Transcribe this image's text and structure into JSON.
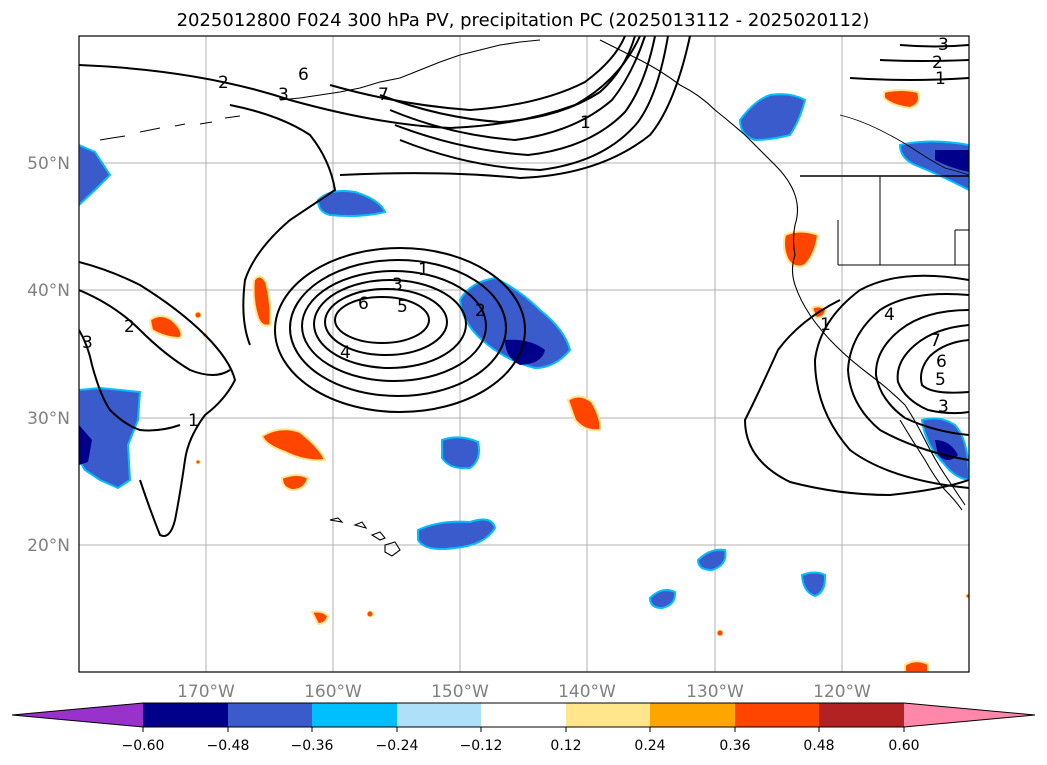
{
  "title": "2025012800 F024 300 hPa PV, precipitation PC (2025013112 - 2025020112)",
  "lat_labels": [
    "50°N",
    "40°N",
    "30°N",
    "20°N"
  ],
  "lon_labels": [
    "170°W",
    "160°W",
    "150°W",
    "140°W",
    "130°W",
    "120°W"
  ],
  "contour_labels": [
    "1",
    "2",
    "3",
    "4",
    "5",
    "6",
    "7"
  ],
  "colorbar": {
    "tick_labels": [
      "−0.60",
      "−0.48",
      "−0.36",
      "−0.24",
      "−0.12",
      "0.12",
      "0.24",
      "0.36",
      "0.48",
      "0.60"
    ],
    "colors": [
      "#9932CC",
      "#00008B",
      "#3A5BCC",
      "#00BFFF",
      "#AEE0FA",
      "#FFFFFF",
      "#FFE68C",
      "#FFA500",
      "#FF4500",
      "#B22222",
      "#FF88AA"
    ]
  },
  "map": {
    "lon_range": [
      -180,
      -110
    ],
    "lat_range": [
      10,
      60
    ],
    "negative_color": "#3A5BCC",
    "strong_negative_color": "#00008B",
    "positive_color": "#FF4500"
  }
}
